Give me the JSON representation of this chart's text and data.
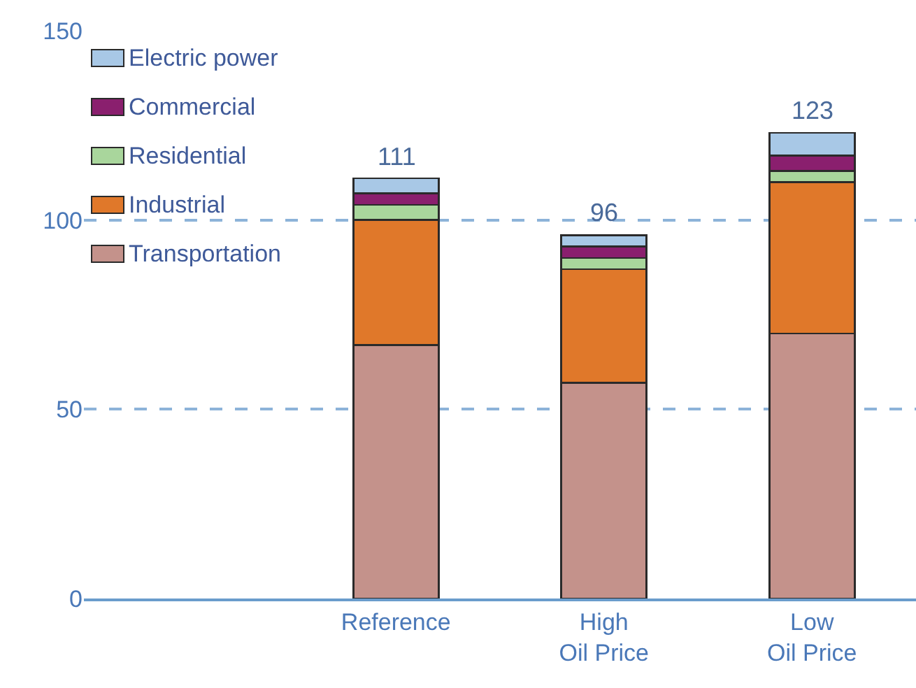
{
  "chart_data": {
    "type": "bar",
    "categories": [
      null,
      "Reference",
      "High\nOil Price",
      "Low\nOil Price"
    ],
    "series": [
      {
        "name": "Transportation",
        "color": "#c4928b",
        "values": [
          null,
          67,
          57,
          70
        ]
      },
      {
        "name": "Industrial",
        "color": "#e0782a",
        "values": [
          null,
          33,
          30,
          40
        ]
      },
      {
        "name": "Residential",
        "color": "#a9d69c",
        "values": [
          null,
          4,
          3,
          3
        ]
      },
      {
        "name": "Commercial",
        "color": "#8a1f6e",
        "values": [
          null,
          3,
          3,
          4
        ]
      },
      {
        "name": "Electric power",
        "color": "#a8c8e6",
        "values": [
          null,
          4,
          3,
          6
        ]
      }
    ],
    "stacked": true,
    "totals": [
      null,
      "111",
      "96",
      "123"
    ],
    "ylim": [
      0,
      150
    ],
    "yticks": [
      0,
      50,
      100,
      150
    ],
    "grid": "y",
    "legend": "top left"
  }
}
